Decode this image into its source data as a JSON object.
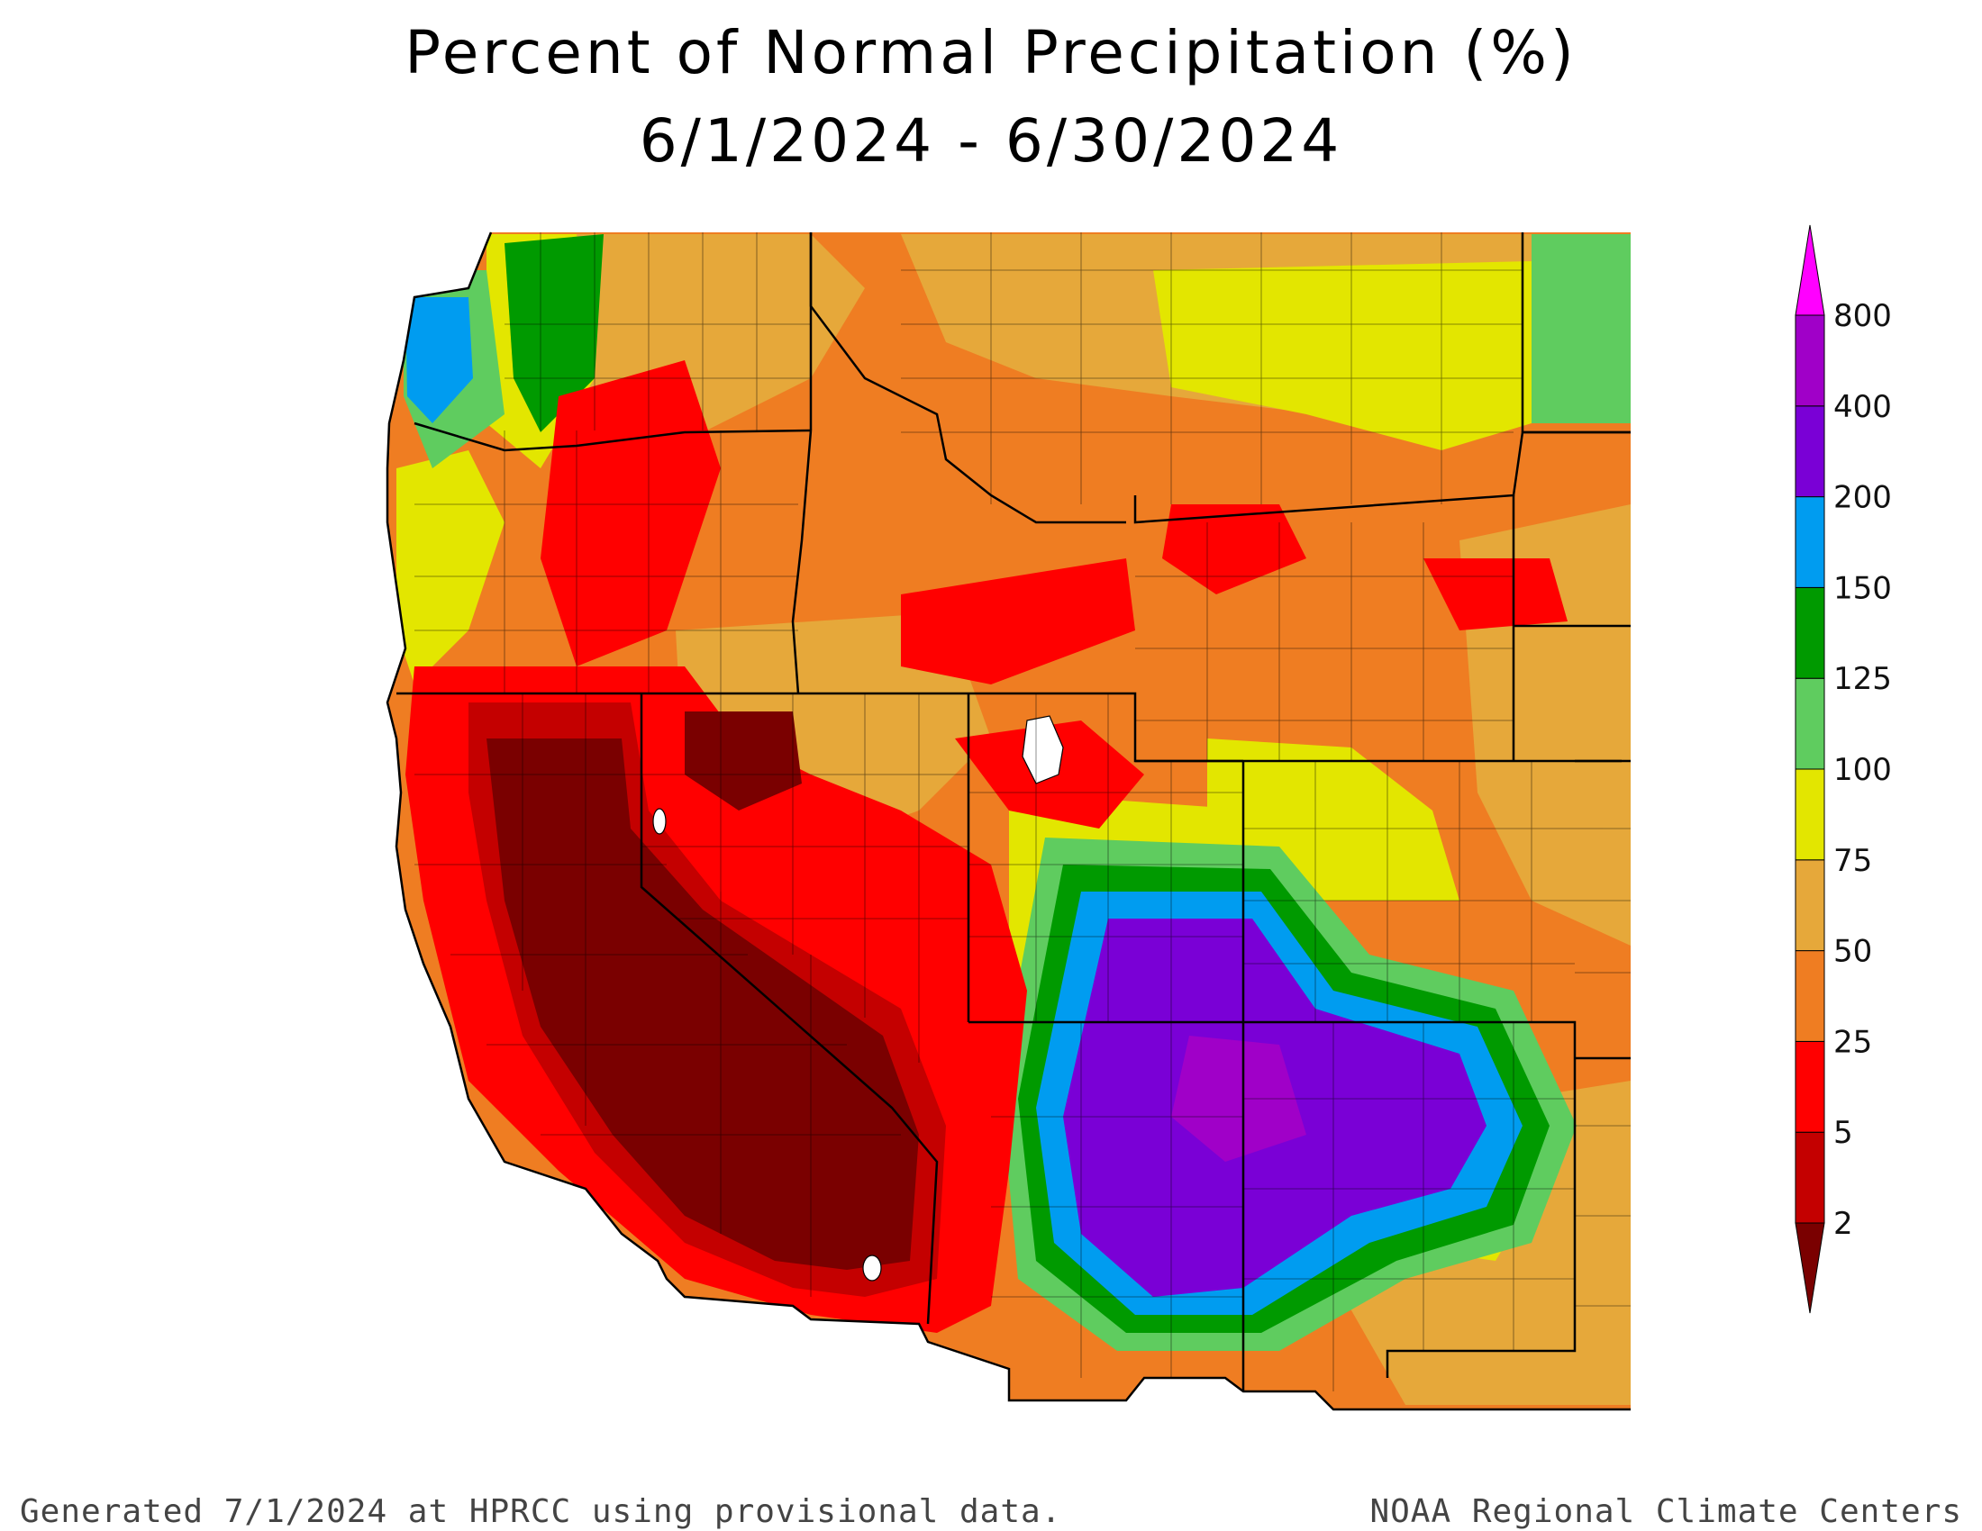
{
  "title": {
    "line1": "Percent of Normal Precipitation (%)",
    "line2": "6/1/2024 - 6/30/2024"
  },
  "footer": {
    "left": "Generated 7/1/2024 at HPRCC using provisional data.",
    "right": "NOAA Regional Climate Centers"
  },
  "legend": {
    "breaks": [
      "2",
      "5",
      "25",
      "50",
      "75",
      "100",
      "125",
      "150",
      "200",
      "400",
      "800"
    ],
    "colors": [
      "#7a0000",
      "#c40000",
      "#ff0000",
      "#ef7d22",
      "#e6a83a",
      "#e3e600",
      "#5fcc5f",
      "#009a00",
      "#009cf0",
      "#7a00d6",
      "#a000c8",
      "#ff00ff"
    ],
    "below_color": "#7a0000",
    "above_color": "#ff00ff"
  },
  "map": {
    "background": "#ffffff",
    "boundary_color": "#000000",
    "water_color": "#ffffff"
  }
}
